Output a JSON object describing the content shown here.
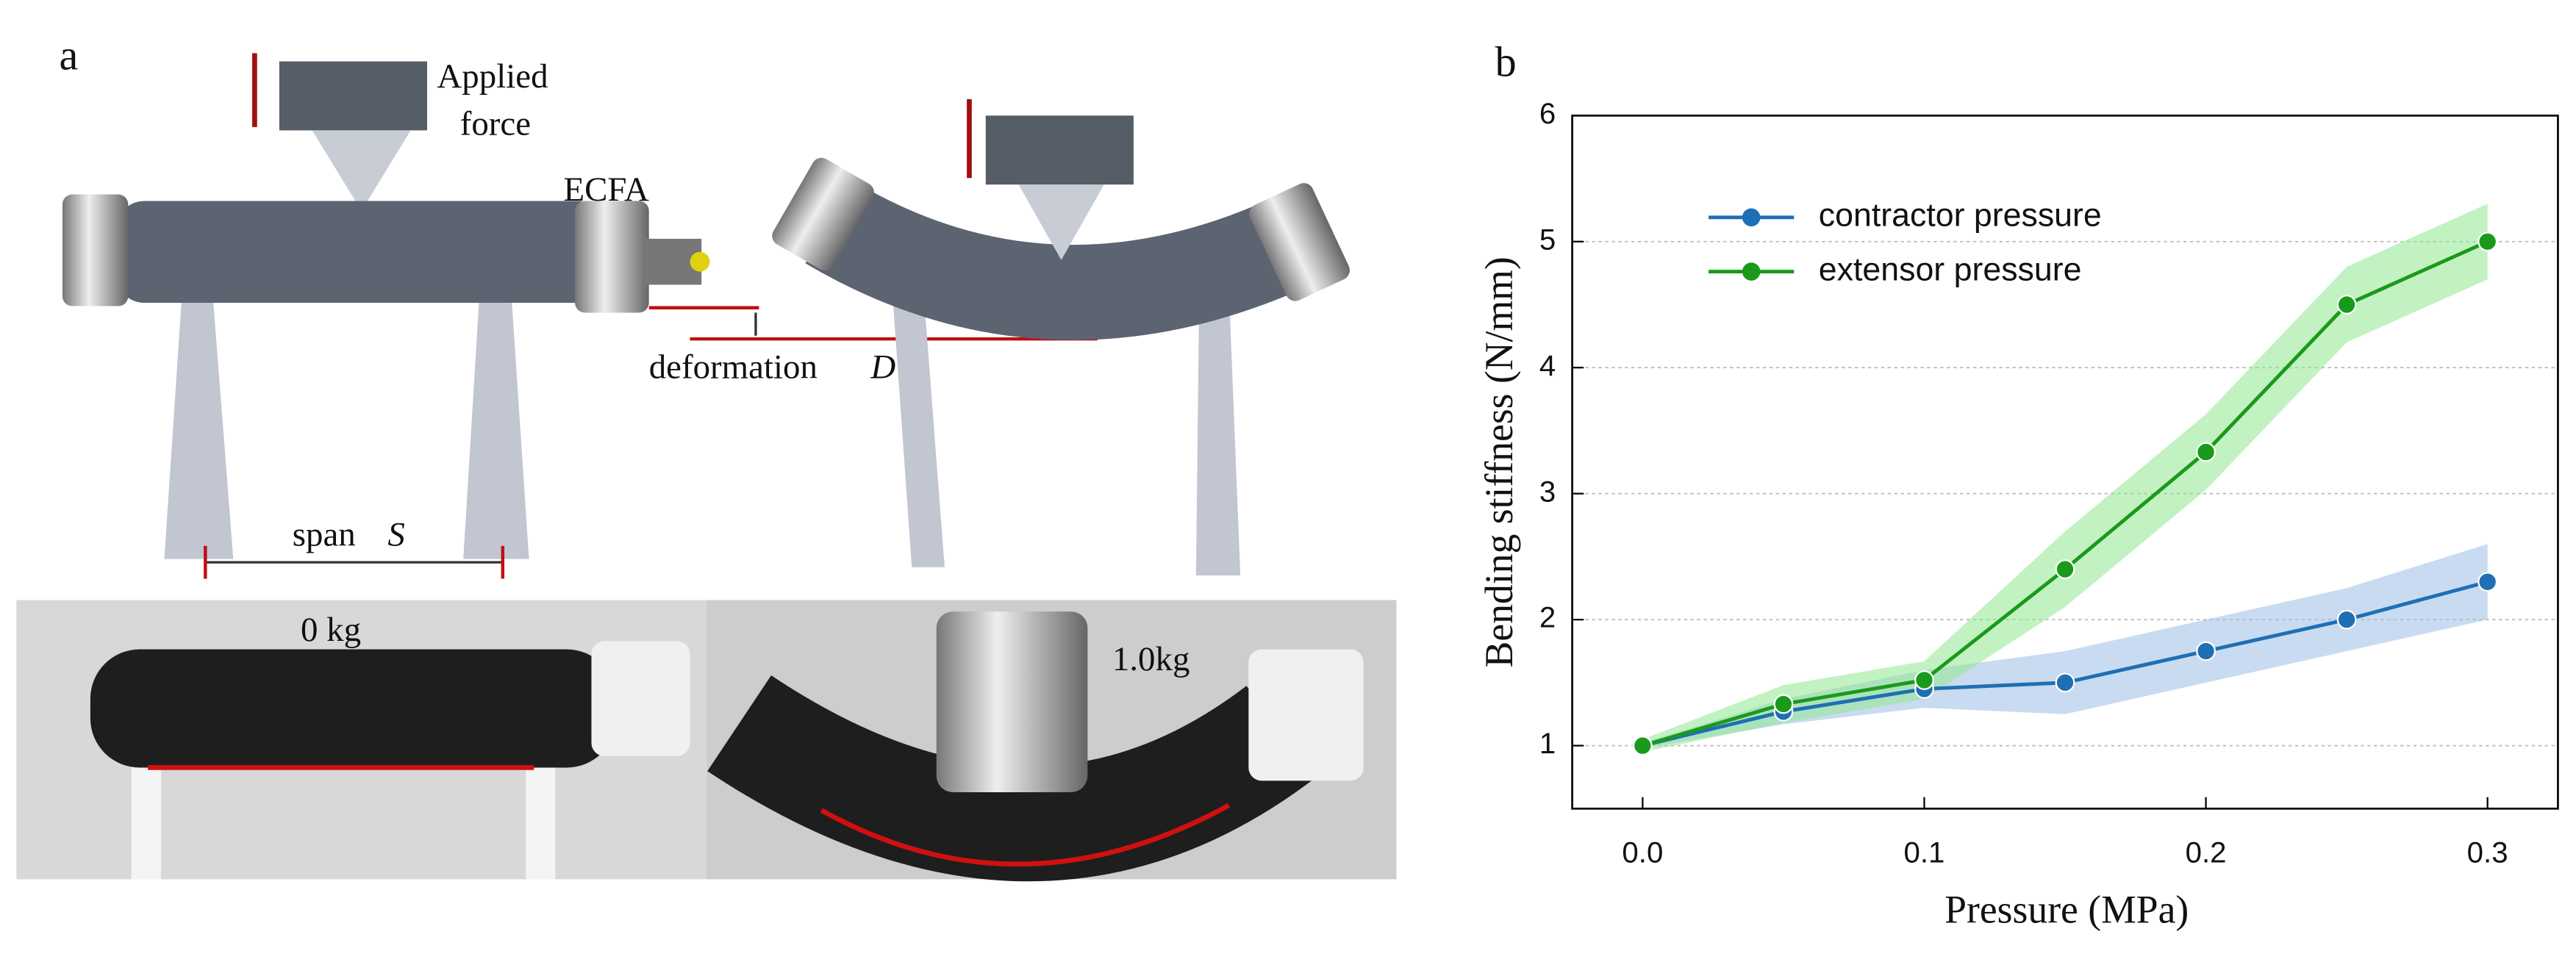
{
  "panel_a": {
    "label": "a",
    "applied_force": [
      "Applied",
      "force"
    ],
    "actuator": "ECFA",
    "deformation": "deformation",
    "deformation_symbol": "D",
    "span": "span",
    "span_symbol": "S",
    "load_left": "0 kg",
    "load_right": "1.0kg"
  },
  "chart_data": {
    "type": "line",
    "panel_label": "b",
    "x_label": "Pressure (MPa)",
    "y_label": "Bending stiffness (N/mm)",
    "x": [
      0,
      0.05,
      0.1,
      0.15,
      0.2,
      0.25,
      0.3
    ],
    "series": [
      {
        "name": "contractor pressure",
        "color": "#1f6fb4",
        "band_color": "#9dbde3",
        "values": [
          1,
          1.27,
          1.45,
          1.5,
          1.75,
          2.0,
          2.3
        ],
        "errors": [
          0.02,
          0.1,
          0.15,
          0.25,
          0.25,
          0.25,
          0.3
        ]
      },
      {
        "name": "extensor pressure",
        "color": "#1a9a1a",
        "band_color": "#8fe88f",
        "values": [
          1,
          1.33,
          1.52,
          2.4,
          3.33,
          4.5,
          5.0
        ],
        "errors": [
          0.05,
          0.15,
          0.15,
          0.3,
          0.3,
          0.3,
          0.3
        ]
      }
    ],
    "xlim": [
      -0.025,
      0.325
    ],
    "ylim": [
      0.5,
      6
    ],
    "xticks": [
      {
        "value": 0,
        "label": "0.0"
      },
      0.1,
      0.2,
      0.3
    ],
    "yticks": [
      1,
      2,
      3,
      4,
      5,
      6
    ],
    "grid": true,
    "legend": "upper left"
  }
}
